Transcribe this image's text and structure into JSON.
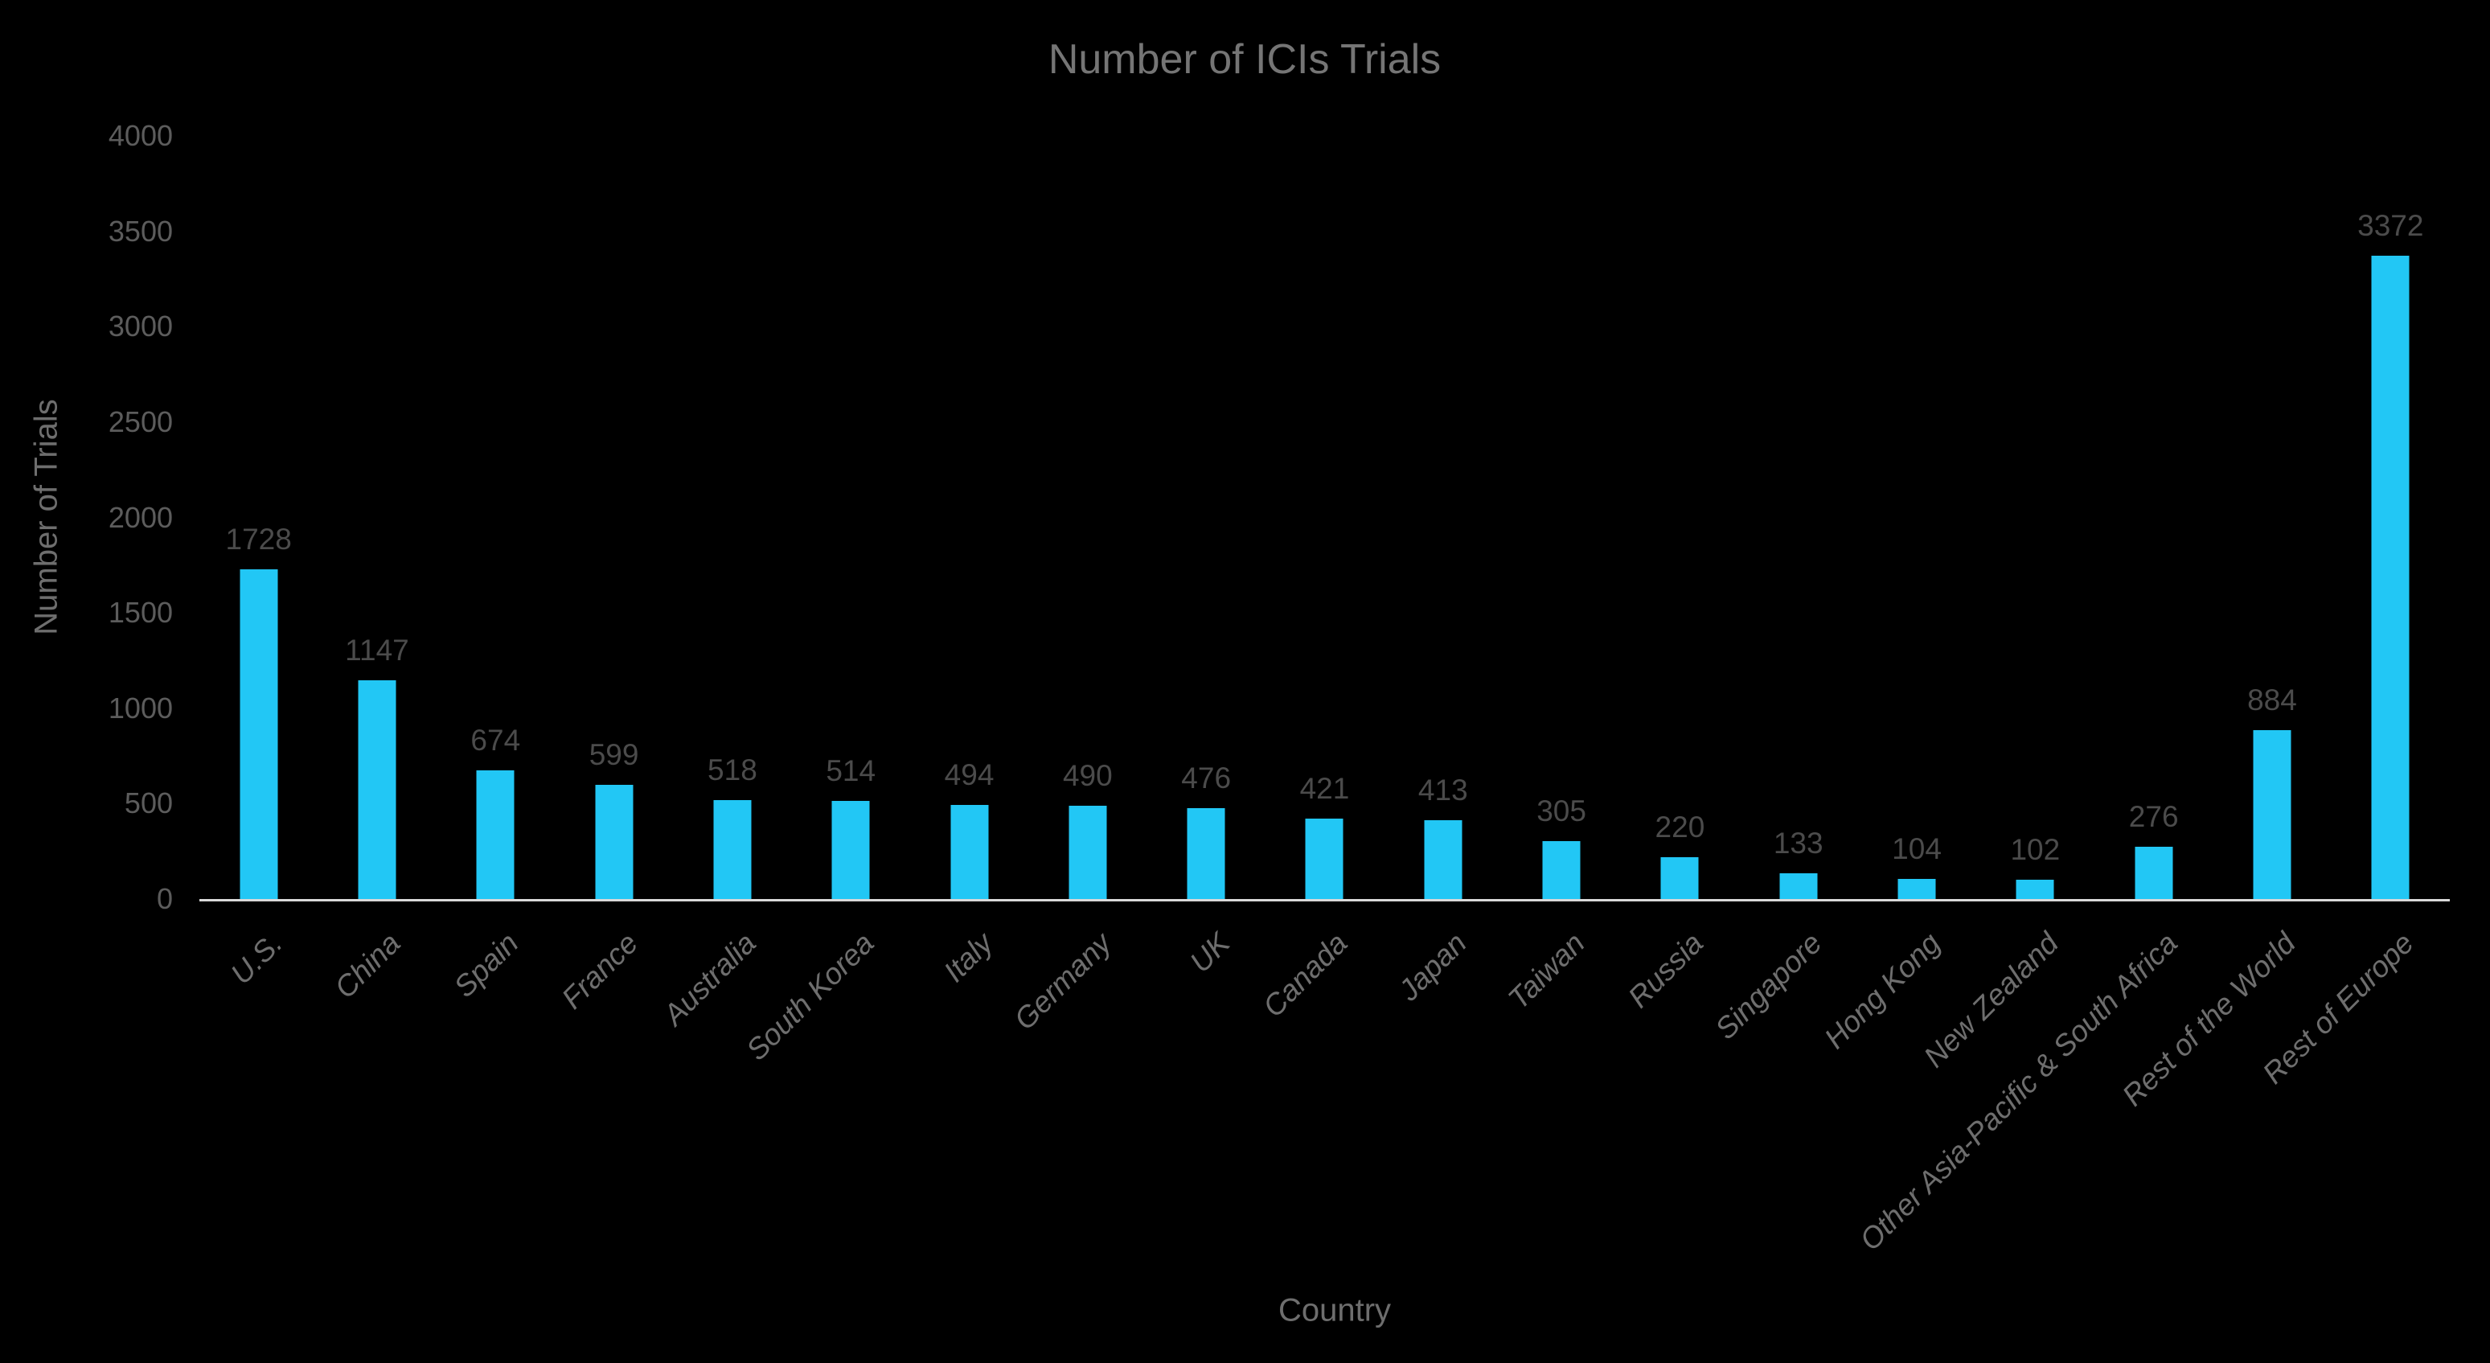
{
  "colors": {
    "background": "#000000",
    "bar_fill": "#22C7F5",
    "axis_line": "#D9D9D9",
    "title_text": "#757575",
    "value_label_text": "#4B4B4B",
    "tick_label_text": "#5C5C5C",
    "category_label_text": "#6E6E6E"
  },
  "chart_data": {
    "type": "bar",
    "title": "Number of ICIs Trials",
    "xlabel": "Country",
    "ylabel": "Number of Trials",
    "categories": [
      "U.S.",
      "China",
      "Spain",
      "France",
      "Australia",
      "South Korea",
      "Italy",
      "Germany",
      "UK",
      "Canada",
      "Japan",
      "Taiwan",
      "Russia",
      "Singapore",
      "Hong Kong",
      "New Zealand",
      "Other Asia-Pacific & South Africa",
      "Rest of the World",
      "Rest of Europe"
    ],
    "values": [
      1728,
      1147,
      674,
      599,
      518,
      514,
      494,
      490,
      476,
      421,
      413,
      305,
      220,
      133,
      104,
      102,
      276,
      884,
      3372
    ],
    "data_labels_shown": true,
    "ylim": [
      0,
      4000
    ],
    "yticks": [
      0,
      500,
      1000,
      1500,
      2000,
      2500,
      3000,
      3500,
      4000
    ],
    "grid": false,
    "legend": "none",
    "bar_orientation": "vertical",
    "category_label_rotation_deg": 45
  }
}
